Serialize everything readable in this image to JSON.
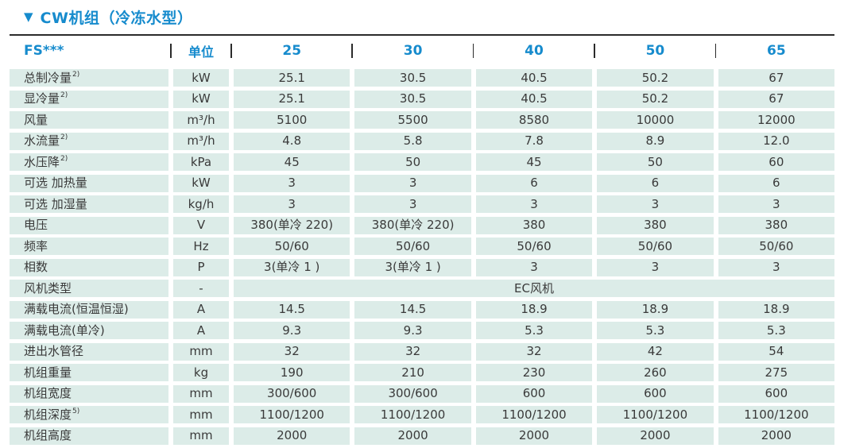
{
  "page": {
    "marker": "▼",
    "title": "CW机组（冷冻水型）"
  },
  "colors": {
    "accent_blue": "#168bcd",
    "row_background": "#dcece8",
    "text": "#3a3a3a",
    "rule_line": "#2b2b2b"
  },
  "table": {
    "header": {
      "model_series": "FS***",
      "unit_col": "单位",
      "models": [
        "25",
        "30",
        "40",
        "50",
        "65"
      ]
    },
    "rows": [
      {
        "label": "总制冷量",
        "sup": "2)",
        "unit": "kW",
        "values": [
          "25.1",
          "30.5",
          "40.5",
          "50.2",
          "67"
        ]
      },
      {
        "label": "显冷量",
        "sup": "2)",
        "unit": "kW",
        "values": [
          "25.1",
          "30.5",
          "40.5",
          "50.2",
          "67"
        ]
      },
      {
        "label": "风量",
        "unit": "m³/h",
        "values": [
          "5100",
          "5500",
          "8580",
          "10000",
          "12000"
        ]
      },
      {
        "label": "水流量",
        "sup": "2)",
        "unit": "m³/h",
        "values": [
          "4.8",
          "5.8",
          "7.8",
          "8.9",
          "12.0"
        ]
      },
      {
        "label": "水压降",
        "sup": "2)",
        "unit": "kPa",
        "values": [
          "45",
          "50",
          "45",
          "50",
          "60"
        ]
      },
      {
        "label": "可选 加热量",
        "unit": "kW",
        "values": [
          "3",
          "3",
          "6",
          "6",
          "6"
        ]
      },
      {
        "label": "可选 加湿量",
        "unit": "kg/h",
        "values": [
          "3",
          "3",
          "3",
          "3",
          "3"
        ]
      },
      {
        "label": "电压",
        "unit": "V",
        "values": [
          "380(单冷 220)",
          "380(单冷 220)",
          "380",
          "380",
          "380"
        ]
      },
      {
        "label": "频率",
        "unit": "Hz",
        "values": [
          "50/60",
          "50/60",
          "50/60",
          "50/60",
          "50/60"
        ]
      },
      {
        "label": "相数",
        "unit": "P",
        "values": [
          "3(单冷 1 )",
          "3(单冷 1 )",
          "3",
          "3",
          "3"
        ]
      },
      {
        "label": "风机类型",
        "unit": "-",
        "merged": "EC风机"
      },
      {
        "label": "满载电流(恒温恒湿)",
        "unit": "A",
        "values": [
          "14.5",
          "14.5",
          "18.9",
          "18.9",
          "18.9"
        ]
      },
      {
        "label": "满载电流(单冷)",
        "unit": "A",
        "values": [
          "9.3",
          "9.3",
          "5.3",
          "5.3",
          "5.3"
        ]
      },
      {
        "label": "进出水管径",
        "unit": "mm",
        "values": [
          "32",
          "32",
          "32",
          "42",
          "54"
        ]
      },
      {
        "label": "机组重量",
        "unit": "kg",
        "values": [
          "190",
          "210",
          "230",
          "260",
          "275"
        ]
      },
      {
        "label": "机组宽度",
        "unit": "mm",
        "values": [
          "300/600",
          "300/600",
          "600",
          "600",
          "600"
        ]
      },
      {
        "label": "机组深度",
        "sup": "5)",
        "unit": "mm",
        "values": [
          "1100/1200",
          "1100/1200",
          "1100/1200",
          "1100/1200",
          "1100/1200"
        ]
      },
      {
        "label": "机组高度",
        "unit": "mm",
        "values": [
          "2000",
          "2000",
          "2000",
          "2000",
          "2000"
        ]
      }
    ]
  }
}
